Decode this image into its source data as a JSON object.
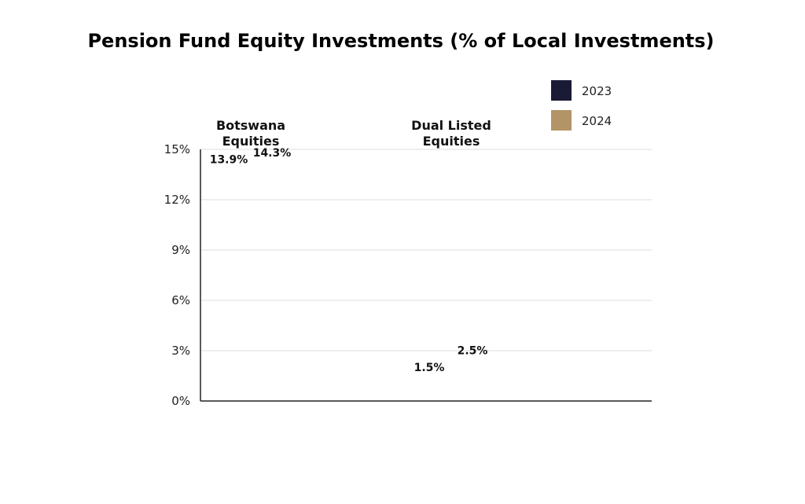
{
  "chart_data": {
    "type": "bar",
    "title": "Pension Fund Equity Investments (% of Local Investments)",
    "categories": [
      [
        "Botswana",
        "Equities"
      ],
      [
        "Dual Listed",
        "Equities"
      ]
    ],
    "series": [
      {
        "name": "2023",
        "color": "#1a1a35",
        "values": [
          13.9,
          1.5
        ],
        "labels": [
          "13.9%",
          "1.5%"
        ]
      },
      {
        "name": "2024",
        "color": "#b39467",
        "values": [
          14.3,
          2.5
        ],
        "labels": [
          "14.3%",
          "2.5%"
        ]
      }
    ],
    "ylim": [
      0,
      15
    ],
    "yticks": [
      0,
      3,
      6,
      9,
      12,
      15
    ],
    "ytick_labels": [
      "0%",
      "3%",
      "6%",
      "9%",
      "12%",
      "15%"
    ],
    "grid": true,
    "legend_position": "top-right",
    "bars_rendered": false
  }
}
